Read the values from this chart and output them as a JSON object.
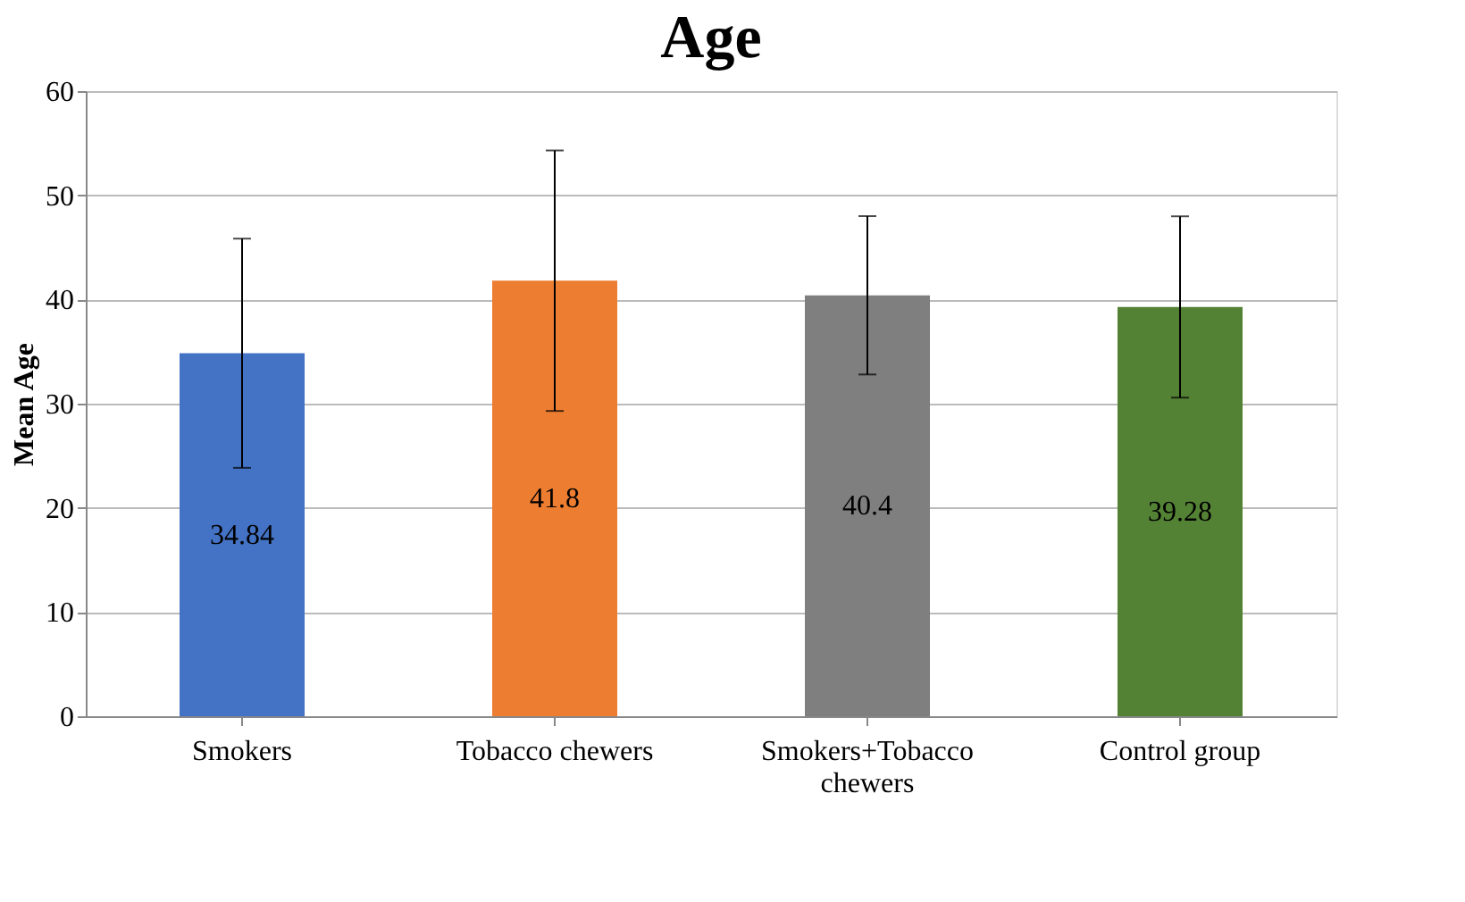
{
  "chart_data": {
    "type": "bar",
    "title": "Age",
    "ylabel": "Mean Age",
    "categories": [
      "Smokers",
      "Tobacco chewers",
      "Smokers+Tobacco chewers",
      "Control group"
    ],
    "values": [
      34.84,
      41.8,
      40.4,
      39.28
    ],
    "colors": [
      "#4472c4",
      "#ed7d31",
      "#7f7f7f",
      "#548235"
    ],
    "errors": [
      11.0,
      12.5,
      7.6,
      8.7
    ],
    "data_labels": true,
    "ylim": [
      0,
      60
    ],
    "yticks": [
      0,
      10,
      20,
      30,
      40,
      50,
      60
    ],
    "grid": "y"
  }
}
